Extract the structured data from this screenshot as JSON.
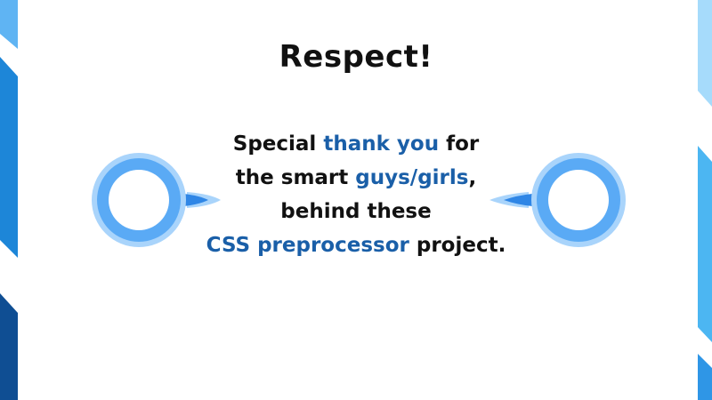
{
  "slide": {
    "title": "Respect!",
    "line1": {
      "pre": "Special ",
      "highlight": "thank you",
      "post": " for"
    },
    "line2": {
      "pre": "the smart ",
      "highlight": "guys/girls",
      "post": ","
    },
    "line3": {
      "text": "behind these"
    },
    "line4": {
      "highlight": "CSS preprocessor",
      "post": " project."
    }
  },
  "colors": {
    "highlight": "#1a5fa8",
    "text": "#111111",
    "loupe_outer": "#a9d4fb",
    "loupe_mid": "#5aaaf5",
    "loupe_inner": "#2f86e6",
    "stripe_dark": "#0f4e93",
    "stripe_mid": "#1e7fd6",
    "stripe_light": "#9fd6fb"
  },
  "icons": [
    "magnifier-left-icon",
    "magnifier-right-icon"
  ]
}
